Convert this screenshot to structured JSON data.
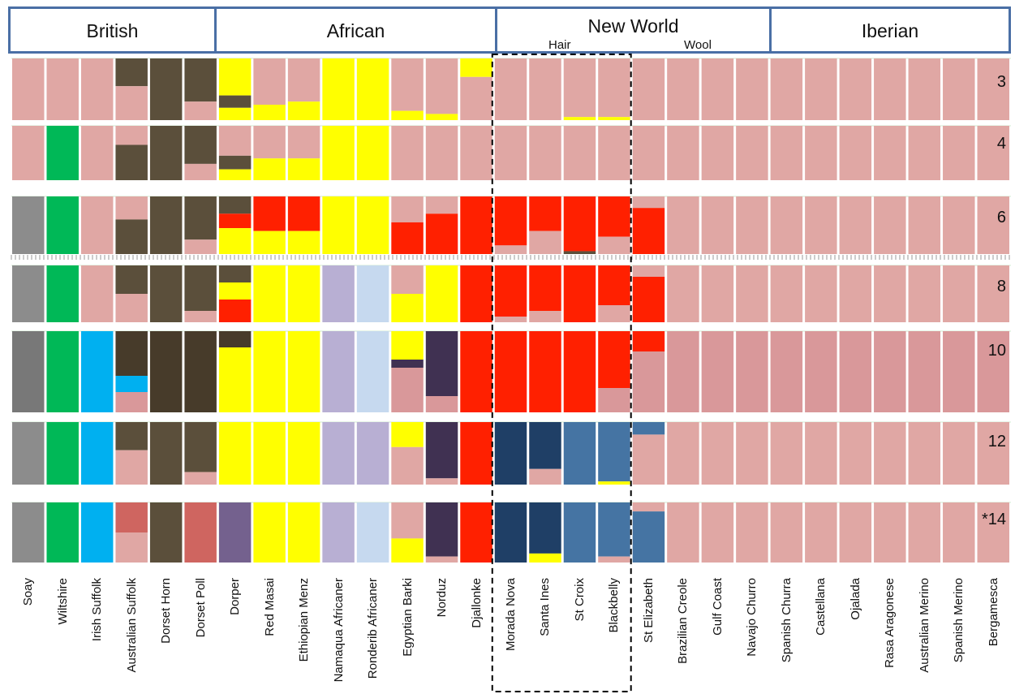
{
  "chart_data": {
    "type": "stacked-bar (admixture / STRUCTURE plot)",
    "groups": [
      {
        "name": "British",
        "breeds": [
          "Soay",
          "Wiltshire",
          "Irish Suffolk",
          "Australian Suffolk",
          "Dorset Horn",
          "Dorset Poll"
        ]
      },
      {
        "name": "African",
        "breeds": [
          "Dorper",
          "Red Masai",
          "Ethiopian Menz",
          "Namaqua Africaner",
          "Ronderib Africaner",
          "Egyptian Barki",
          "Norduz",
          "Djallonke"
        ]
      },
      {
        "name": "New World",
        "subgroups": [
          {
            "name": "Hair",
            "breeds": [
              "Morada Nova",
              "Santa Ines",
              "St Croix",
              "Blackbelly"
            ]
          },
          {
            "name": "Wool",
            "breeds": [
              "St Elizabeth",
              "Brazilian Creole",
              "Gulf Coast",
              "Navajo Churro"
            ]
          }
        ]
      },
      {
        "name": "Iberian",
        "breeds": [
          "Spanish Churra",
          "Castellana",
          "Ojalada",
          "Rasa Aragonese",
          "Australian Merino",
          "Spanish Merino",
          "Bergamesca"
        ]
      }
    ],
    "breeds": [
      "Soay",
      "Wiltshire",
      "Irish Suffolk",
      "Australian Suffolk",
      "Dorset Horn",
      "Dorset Poll",
      "Dorper",
      "Red Masai",
      "Ethiopian Menz",
      "Namaqua Africaner",
      "Ronderib Africaner",
      "Egyptian Barki",
      "Norduz",
      "Djallonke",
      "Morada Nova",
      "Santa Ines",
      "St Croix",
      "Blackbelly",
      "St Elizabeth",
      "Brazilian Creole",
      "Gulf Coast",
      "Navajo Churro",
      "Spanish Churra",
      "Castellana",
      "Ojalada",
      "Rasa Aragonese",
      "Australian Merino",
      "Spanish Merino",
      "Bergamesca"
    ],
    "k_rows": [
      {
        "label": "3",
        "k": 3
      },
      {
        "label": "4",
        "k": 4
      },
      {
        "label": "6",
        "k": 6
      },
      {
        "label": "8",
        "k": 8
      },
      {
        "label": "10",
        "k": 10
      },
      {
        "label": "12",
        "k": 12
      },
      {
        "label": "*14",
        "k": 14
      }
    ],
    "cluster_colors": {
      "pink": "#e0a7a4",
      "olive": "#5b4f3b",
      "yellow": "#ffff00",
      "green": "#00b857",
      "gray": "#8c8c8c",
      "red": "#ff2000",
      "lavender": "#b8afd3",
      "lightblue": "#c6d9ef",
      "cyan": "#00b0f0",
      "darkpurple": "#403152",
      "navy": "#1f3f66",
      "steelblue": "#4574a3",
      "salmon": "#cf6560",
      "violet": "#74618e"
    },
    "k_10_tone": {
      "pink": "#d9989a",
      "olive": "#473b2a",
      "gray": "#787878"
    },
    "assignments": [
      {
        "k": 3,
        "bars": [
          [
            "pink"
          ],
          [
            "pink"
          ],
          [
            "pink"
          ],
          [
            "olive",
            0.45,
            "pink"
          ],
          [
            "olive"
          ],
          [
            "olive",
            0.7,
            "pink"
          ],
          [
            "yellow",
            0.6,
            "olive",
            0.2,
            "yellow"
          ],
          [
            "pink",
            0.75,
            "yellow"
          ],
          [
            "pink",
            0.7,
            "yellow"
          ],
          [
            "yellow"
          ],
          [
            "yellow"
          ],
          [
            "pink",
            0.85,
            "yellow"
          ],
          [
            "pink",
            0.9,
            "yellow"
          ],
          [
            "yellow",
            0.3,
            "pink"
          ],
          [
            "pink"
          ],
          [
            "pink"
          ],
          [
            "pink",
            0.95,
            "yellow"
          ],
          [
            "pink",
            0.95,
            "yellow"
          ],
          [
            "pink"
          ],
          [
            "pink"
          ],
          [
            "pink"
          ],
          [
            "pink"
          ],
          [
            "pink"
          ],
          [
            "pink"
          ],
          [
            "pink"
          ],
          [
            "pink"
          ],
          [
            "pink"
          ],
          [
            "pink"
          ],
          [
            "pink"
          ]
        ]
      },
      {
        "k": 4,
        "bars": [
          [
            "pink"
          ],
          [
            "green"
          ],
          [
            "pink"
          ],
          [
            "pink",
            0.35,
            "olive"
          ],
          [
            "olive"
          ],
          [
            "olive",
            0.7,
            "pink"
          ],
          [
            "pink",
            0.55,
            "olive",
            0.25,
            "yellow"
          ],
          [
            "pink",
            0.6,
            "yellow"
          ],
          [
            "pink",
            0.6,
            "yellow"
          ],
          [
            "yellow"
          ],
          [
            "yellow"
          ],
          [
            "pink"
          ],
          [
            "pink"
          ],
          [
            "pink"
          ],
          [
            "pink"
          ],
          [
            "pink"
          ],
          [
            "pink"
          ],
          [
            "pink"
          ],
          [
            "pink"
          ],
          [
            "pink"
          ],
          [
            "pink"
          ],
          [
            "pink"
          ],
          [
            "pink"
          ],
          [
            "pink"
          ],
          [
            "pink"
          ],
          [
            "pink"
          ],
          [
            "pink"
          ],
          [
            "pink"
          ],
          [
            "pink"
          ]
        ]
      },
      {
        "k": 6,
        "bars": [
          [
            "gray"
          ],
          [
            "green"
          ],
          [
            "pink"
          ],
          [
            "pink",
            0.4,
            "olive"
          ],
          [
            "olive"
          ],
          [
            "olive",
            0.75,
            "pink"
          ],
          [
            "olive",
            0.3,
            "red",
            0.25,
            "yellow"
          ],
          [
            "red",
            0.6,
            "yellow"
          ],
          [
            "red",
            0.6,
            "yellow"
          ],
          [
            "yellow"
          ],
          [
            "yellow"
          ],
          [
            "pink",
            0.45,
            "red"
          ],
          [
            "pink",
            0.3,
            "red"
          ],
          [
            "red"
          ],
          [
            "red",
            0.85,
            "pink"
          ],
          [
            "red",
            0.6,
            "pink"
          ],
          [
            "red",
            0.95,
            "olive"
          ],
          [
            "red",
            0.7,
            "pink"
          ],
          [
            "pink",
            0.2,
            "red"
          ],
          [
            "pink"
          ],
          [
            "pink"
          ],
          [
            "pink"
          ],
          [
            "pink"
          ],
          [
            "pink"
          ],
          [
            "pink"
          ],
          [
            "pink"
          ],
          [
            "pink"
          ],
          [
            "pink"
          ],
          [
            "pink"
          ]
        ]
      },
      {
        "k": 8,
        "bars": [
          [
            "gray"
          ],
          [
            "green"
          ],
          [
            "pink"
          ],
          [
            "olive",
            0.5,
            "pink"
          ],
          [
            "olive"
          ],
          [
            "olive",
            0.8,
            "pink"
          ],
          [
            "olive",
            0.3,
            "yellow",
            0.3,
            "red"
          ],
          [
            "yellow"
          ],
          [
            "yellow"
          ],
          [
            "lavender"
          ],
          [
            "lightblue"
          ],
          [
            "pink",
            0.5,
            "yellow"
          ],
          [
            "yellow"
          ],
          [
            "red"
          ],
          [
            "red",
            0.9,
            "pink"
          ],
          [
            "red",
            0.8,
            "pink"
          ],
          [
            "red"
          ],
          [
            "red",
            0.7,
            "pink"
          ],
          [
            "pink",
            0.2,
            "red"
          ],
          [
            "pink"
          ],
          [
            "pink"
          ],
          [
            "pink"
          ],
          [
            "pink"
          ],
          [
            "pink"
          ],
          [
            "pink"
          ],
          [
            "pink"
          ],
          [
            "pink"
          ],
          [
            "pink"
          ],
          [
            "pink"
          ]
        ]
      },
      {
        "k": 10,
        "bars": [
          [
            "gray"
          ],
          [
            "green"
          ],
          [
            "cyan"
          ],
          [
            "olive",
            0.55,
            "cyan",
            0.2,
            "pink"
          ],
          [
            "olive"
          ],
          [
            "olive"
          ],
          [
            "olive",
            0.2,
            "yellow"
          ],
          [
            "yellow"
          ],
          [
            "yellow"
          ],
          [
            "lavender"
          ],
          [
            "lightblue"
          ],
          [
            "yellow",
            0.35,
            "darkpurple",
            0.1,
            "pink"
          ],
          [
            "darkpurple",
            0.8,
            "pink"
          ],
          [
            "red"
          ],
          [
            "red"
          ],
          [
            "red"
          ],
          [
            "red"
          ],
          [
            "red",
            0.7,
            "pink"
          ],
          [
            "red",
            0.25,
            "pink"
          ],
          [
            "pink"
          ],
          [
            "pink"
          ],
          [
            "pink"
          ],
          [
            "pink"
          ],
          [
            "pink"
          ],
          [
            "pink"
          ],
          [
            "pink"
          ],
          [
            "pink"
          ],
          [
            "pink"
          ],
          [
            "pink"
          ]
        ]
      },
      {
        "k": 12,
        "bars": [
          [
            "gray"
          ],
          [
            "green"
          ],
          [
            "cyan"
          ],
          [
            "olive",
            0.45,
            "pink"
          ],
          [
            "olive"
          ],
          [
            "olive",
            0.8,
            "pink"
          ],
          [
            "yellow"
          ],
          [
            "yellow"
          ],
          [
            "yellow"
          ],
          [
            "lavender"
          ],
          [
            "lavender"
          ],
          [
            "yellow",
            0.4,
            "pink"
          ],
          [
            "darkpurple",
            0.9,
            "pink"
          ],
          [
            "red"
          ],
          [
            "navy"
          ],
          [
            "navy",
            0.75,
            "pink"
          ],
          [
            "steelblue"
          ],
          [
            "steelblue",
            0.95,
            "yellow"
          ],
          [
            "steelblue",
            0.2,
            "pink"
          ],
          [
            "pink"
          ],
          [
            "pink"
          ],
          [
            "pink"
          ],
          [
            "pink"
          ],
          [
            "pink"
          ],
          [
            "pink"
          ],
          [
            "pink"
          ],
          [
            "pink"
          ],
          [
            "pink"
          ],
          [
            "pink"
          ]
        ]
      },
      {
        "k": 14,
        "bars": [
          [
            "gray"
          ],
          [
            "green"
          ],
          [
            "cyan"
          ],
          [
            "salmon",
            0.5,
            "pink"
          ],
          [
            "olive"
          ],
          [
            "salmon"
          ],
          [
            "violet"
          ],
          [
            "yellow"
          ],
          [
            "yellow"
          ],
          [
            "lavender"
          ],
          [
            "lightblue"
          ],
          [
            "pink",
            0.6,
            "yellow"
          ],
          [
            "darkpurple",
            0.9,
            "pink"
          ],
          [
            "red"
          ],
          [
            "navy"
          ],
          [
            "navy",
            0.85,
            "yellow"
          ],
          [
            "steelblue"
          ],
          [
            "steelblue",
            0.9,
            "pink"
          ],
          [
            "pink",
            0.15,
            "steelblue"
          ],
          [
            "pink"
          ],
          [
            "pink"
          ],
          [
            "pink"
          ],
          [
            "pink"
          ],
          [
            "pink"
          ],
          [
            "pink"
          ],
          [
            "pink"
          ],
          [
            "pink"
          ],
          [
            "pink"
          ],
          [
            "pink"
          ]
        ]
      }
    ]
  }
}
